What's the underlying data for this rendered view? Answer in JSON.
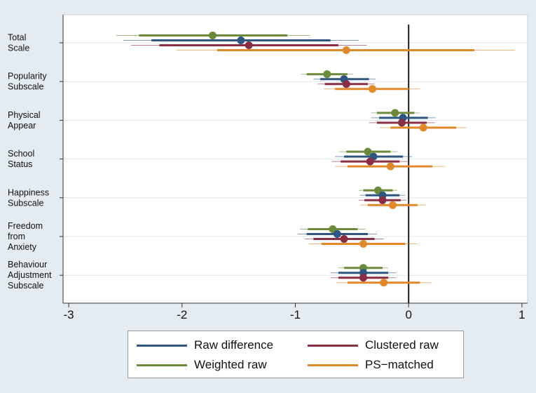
{
  "chart_data": {
    "type": "forest",
    "xlim": [
      -3.05,
      1.05
    ],
    "xticks": [
      "-3",
      "-2",
      "-1",
      "0",
      "1"
    ],
    "xtick_values": [
      -3,
      -2,
      -1,
      0,
      1
    ],
    "reference_line": 0,
    "grid": true,
    "legend_position": "bottom",
    "categories": [
      [
        "Total",
        "Scale"
      ],
      [
        "Popularity",
        "Subscale"
      ],
      [
        "Physical",
        "Appear"
      ],
      [
        "School",
        "Status"
      ],
      [
        "Happiness",
        "Subscale"
      ],
      [
        "Freedom",
        "from",
        "Anxiety"
      ],
      [
        "Behaviour",
        "Adjustment",
        "Subscale"
      ]
    ],
    "series": [
      {
        "name": "Weighted raw",
        "color": "#6b8a3a",
        "points": [
          {
            "est": -1.73,
            "lo": -2.38,
            "hi": -1.07,
            "lo2": -2.58,
            "hi2": -0.87
          },
          {
            "est": -0.72,
            "lo": -0.9,
            "hi": -0.54,
            "lo2": -0.95,
            "hi2": -0.49
          },
          {
            "est": -0.12,
            "lo": -0.28,
            "hi": 0.05,
            "lo2": -0.33,
            "hi2": 0.1
          },
          {
            "est": -0.36,
            "lo": -0.55,
            "hi": -0.16,
            "lo2": -0.61,
            "hi2": -0.1
          },
          {
            "est": -0.27,
            "lo": -0.4,
            "hi": -0.14,
            "lo2": -0.44,
            "hi2": -0.1
          },
          {
            "est": -0.67,
            "lo": -0.89,
            "hi": -0.45,
            "lo2": -0.96,
            "hi2": -0.38
          },
          {
            "est": -0.4,
            "lo": -0.57,
            "hi": -0.23,
            "lo2": -0.62,
            "hi2": -0.18
          }
        ]
      },
      {
        "name": "Raw difference",
        "color": "#2f5680",
        "points": [
          {
            "est": -1.48,
            "lo": -2.27,
            "hi": -0.69,
            "lo2": -2.52,
            "hi2": -0.44
          },
          {
            "est": -0.57,
            "lo": -0.78,
            "hi": -0.35,
            "lo2": -0.84,
            "hi2": -0.29
          },
          {
            "est": -0.05,
            "lo": -0.26,
            "hi": 0.17,
            "lo2": -0.33,
            "hi2": 0.24
          },
          {
            "est": -0.31,
            "lo": -0.57,
            "hi": -0.05,
            "lo2": -0.65,
            "hi2": 0.03
          },
          {
            "est": -0.23,
            "lo": -0.38,
            "hi": -0.08,
            "lo2": -0.43,
            "hi2": -0.03
          },
          {
            "est": -0.63,
            "lo": -0.9,
            "hi": -0.36,
            "lo2": -0.98,
            "hi2": -0.28
          },
          {
            "est": -0.4,
            "lo": -0.62,
            "hi": -0.18,
            "lo2": -0.69,
            "hi2": -0.11
          }
        ]
      },
      {
        "name": "Clustered raw",
        "color": "#8a2f43",
        "points": [
          {
            "est": -1.41,
            "lo": -2.2,
            "hi": -0.62,
            "lo2": -2.45,
            "hi2": -0.37
          },
          {
            "est": -0.55,
            "lo": -0.74,
            "hi": -0.36,
            "lo2": -0.8,
            "hi2": -0.3
          },
          {
            "est": -0.06,
            "lo": -0.28,
            "hi": 0.16,
            "lo2": -0.35,
            "hi2": 0.23
          },
          {
            "est": -0.34,
            "lo": -0.6,
            "hi": -0.08,
            "lo2": -0.68,
            "hi2": 0.0
          },
          {
            "est": -0.23,
            "lo": -0.39,
            "hi": -0.07,
            "lo2": -0.44,
            "hi2": -0.02
          },
          {
            "est": -0.57,
            "lo": -0.84,
            "hi": -0.3,
            "lo2": -0.92,
            "hi2": -0.22
          },
          {
            "est": -0.4,
            "lo": -0.62,
            "hi": -0.18,
            "lo2": -0.69,
            "hi2": -0.11
          }
        ]
      },
      {
        "name": "PS-matched",
        "color": "#e0892a",
        "points": [
          {
            "est": -0.55,
            "lo": -1.69,
            "hi": 0.58,
            "lo2": -2.05,
            "hi2": 0.94
          },
          {
            "est": -0.32,
            "lo": -0.65,
            "hi": 0.0,
            "lo2": -0.75,
            "hi2": 0.1
          },
          {
            "est": 0.13,
            "lo": -0.16,
            "hi": 0.42,
            "lo2": -0.25,
            "hi2": 0.51
          },
          {
            "est": -0.16,
            "lo": -0.54,
            "hi": 0.21,
            "lo2": -0.65,
            "hi2": 0.32
          },
          {
            "est": -0.14,
            "lo": -0.36,
            "hi": 0.08,
            "lo2": -0.43,
            "hi2": 0.15
          },
          {
            "est": -0.4,
            "lo": -0.77,
            "hi": -0.03,
            "lo2": -0.88,
            "hi2": 0.08
          },
          {
            "est": -0.22,
            "lo": -0.54,
            "hi": 0.1,
            "lo2": -0.64,
            "hi2": 0.2
          }
        ]
      }
    ]
  },
  "legend": {
    "items": [
      {
        "label": "Raw difference",
        "color": "#2f5680"
      },
      {
        "label": "Clustered raw",
        "color": "#8a2f43"
      },
      {
        "label": "Weighted raw",
        "color": "#6b8a3a"
      },
      {
        "label": "PS−matched",
        "color": "#e0892a"
      }
    ]
  }
}
